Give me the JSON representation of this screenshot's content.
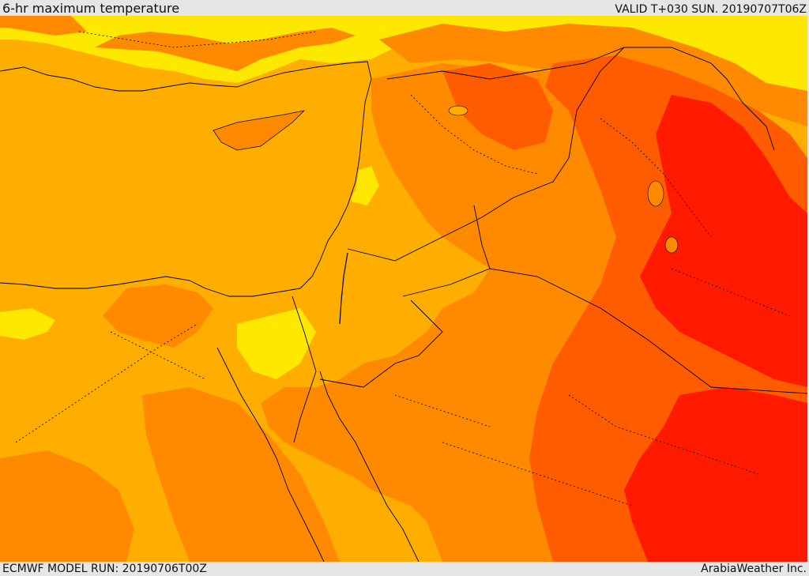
{
  "header": {
    "title": "6-hr maximum temperature",
    "valid": "VALID T+030 SUN. 20190707T06Z"
  },
  "footer": {
    "model_run": "ECMWF MODEL RUN: 20190706T00Z",
    "credit": "ArabiaWeather Inc."
  },
  "colors": {
    "band_yellow": "#ffe800",
    "band_light_orange": "#ffae00",
    "band_orange": "#ff8a00",
    "band_dark_orange": "#ff5c00",
    "band_red": "#ff1a00",
    "coastline": "#000000"
  }
}
